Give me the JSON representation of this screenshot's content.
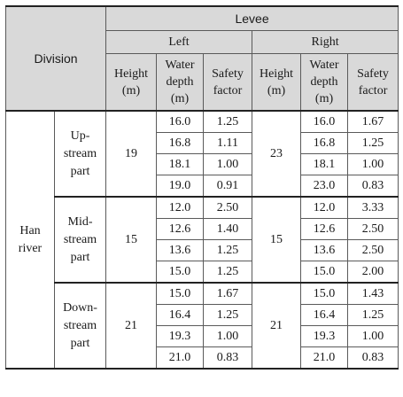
{
  "header": {
    "division": "Division",
    "levee": "Levee",
    "left": "Left",
    "right": "Right",
    "height": [
      "Height",
      "(m)"
    ],
    "water_depth": [
      "Water",
      "depth",
      "(m)"
    ],
    "safety_factor": [
      "Safety",
      "factor"
    ]
  },
  "river": [
    "Han",
    "river"
  ],
  "sections": [
    {
      "name": [
        "Up-",
        "stream",
        "part"
      ],
      "left_height": "19",
      "right_height": "23",
      "rows": [
        {
          "left_depth": "16.0",
          "left_sf": "1.25",
          "right_depth": "16.0",
          "right_sf": "1.67"
        },
        {
          "left_depth": "16.8",
          "left_sf": "1.11",
          "right_depth": "16.8",
          "right_sf": "1.25"
        },
        {
          "left_depth": "18.1",
          "left_sf": "1.00",
          "right_depth": "18.1",
          "right_sf": "1.00"
        },
        {
          "left_depth": "19.0",
          "left_sf": "0.91",
          "right_depth": "23.0",
          "right_sf": "0.83"
        }
      ]
    },
    {
      "name": [
        "Mid-",
        "stream",
        "part"
      ],
      "left_height": "15",
      "right_height": "15",
      "rows": [
        {
          "left_depth": "12.0",
          "left_sf": "2.50",
          "right_depth": "12.0",
          "right_sf": "3.33"
        },
        {
          "left_depth": "12.6",
          "left_sf": "1.40",
          "right_depth": "12.6",
          "right_sf": "2.50"
        },
        {
          "left_depth": "13.6",
          "left_sf": "1.25",
          "right_depth": "13.6",
          "right_sf": "2.50"
        },
        {
          "left_depth": "15.0",
          "left_sf": "1.25",
          "right_depth": "15.0",
          "right_sf": "2.00"
        }
      ]
    },
    {
      "name": [
        "Down-",
        "stream",
        "part"
      ],
      "left_height": "21",
      "right_height": "21",
      "rows": [
        {
          "left_depth": "15.0",
          "left_sf": "1.67",
          "right_depth": "15.0",
          "right_sf": "1.43"
        },
        {
          "left_depth": "16.4",
          "left_sf": "1.25",
          "right_depth": "16.4",
          "right_sf": "1.25"
        },
        {
          "left_depth": "19.3",
          "left_sf": "1.00",
          "right_depth": "19.3",
          "right_sf": "1.00"
        },
        {
          "left_depth": "21.0",
          "left_sf": "0.83",
          "right_depth": "21.0",
          "right_sf": "0.83"
        }
      ]
    }
  ]
}
